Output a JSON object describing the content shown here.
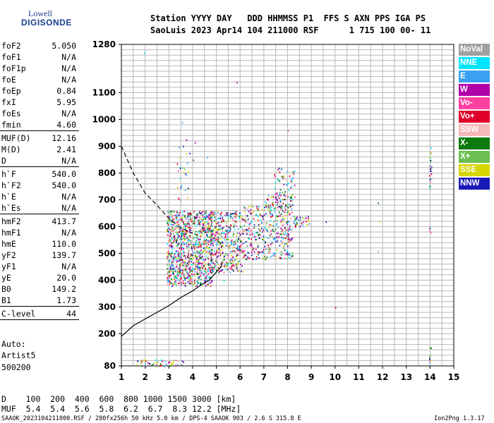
{
  "logo": {
    "line1": "Lowell",
    "line2": "DIGISONDE"
  },
  "header": {
    "line1": "Station YYYY DAY   DDD HHMMSS P1  FFS S AXN PPS IGA PS",
    "line2": "SaoLuis 2023 Apr14 104 211000 RSF      1 715 100 00- 11"
  },
  "params_groups": [
    [
      [
        "foF2",
        "5.050"
      ],
      [
        "foF1",
        "N/A"
      ],
      [
        "foF1p",
        "N/A"
      ],
      [
        "foE",
        "N/A"
      ],
      [
        "foEp",
        "0.84"
      ],
      [
        "fxI",
        "5.95"
      ],
      [
        "foEs",
        "N/A"
      ],
      [
        "fmin",
        "4.60"
      ]
    ],
    [
      [
        "MUF(D)",
        "12.16"
      ],
      [
        "M(D)",
        "2.41"
      ],
      [
        "D",
        "N/A"
      ]
    ],
    [
      [
        "h`F",
        "540.0"
      ],
      [
        "h`F2",
        "540.0"
      ],
      [
        "h`E",
        "N/A"
      ],
      [
        "h`Es",
        "N/A"
      ]
    ],
    [
      [
        "hmF2",
        "413.7"
      ],
      [
        "hmF1",
        "N/A"
      ],
      [
        "hmE",
        "110.0"
      ],
      [
        "yF2",
        "139.7"
      ],
      [
        "yF1",
        "N/A"
      ],
      [
        "yE",
        "20.0"
      ],
      [
        "B0",
        "149.2"
      ],
      [
        "B1",
        "1.73"
      ]
    ],
    [
      [
        "C-level",
        "44"
      ]
    ]
  ],
  "auto": {
    "l1": "Auto:",
    "l2": "Artist5",
    "l3": "500200"
  },
  "legend": [
    {
      "label": "NoVal",
      "color": "#a0a0a0"
    },
    {
      "label": "NNE",
      "color": "#00e5ff"
    },
    {
      "label": "E",
      "color": "#3aa0f0"
    },
    {
      "label": "W",
      "color": "#b000a8"
    },
    {
      "label": "Vo-",
      "color": "#ff40a0"
    },
    {
      "label": "Vo+",
      "color": "#e0002a"
    },
    {
      "label": "SSW",
      "color": "#f6b8b8"
    },
    {
      "label": "X-",
      "color": "#0a7a0a"
    },
    {
      "label": "X+",
      "color": "#6bbf50"
    },
    {
      "label": "SSE",
      "color": "#d6d600"
    },
    {
      "label": "NNW",
      "color": "#1a1ab8"
    }
  ],
  "footer": {
    "d_row": "D    100  200  400  600  800 1000 1500 3000 [km]",
    "muf_row": "MUF  5.4  5.4  5.6  5.8  6.2  6.7  8.3 12.2 [MHz]",
    "info": "SAAOK_2023104211000.RSF / 280fx256h 50 kHz 5.0 km / DPS-4 SAAOK 903 / 2.6 S 315.8 E",
    "version": "Ion2Png 1.3.17"
  },
  "chart_data": {
    "type": "scatter",
    "title": "",
    "xlabel": "",
    "ylabel": "",
    "xlim": [
      1,
      15
    ],
    "ylim": [
      80,
      1280
    ],
    "x_ticks": [
      "1",
      "2",
      "3",
      "4",
      "5",
      "6",
      "7",
      "8",
      "9",
      "10",
      "11",
      "12",
      "13",
      "14",
      "15"
    ],
    "y_ticks": [
      "80",
      "200",
      "300",
      "400",
      "500",
      "600",
      "700",
      "800",
      "900",
      "1000",
      "1100",
      "1280"
    ],
    "y_tick_values": [
      80,
      200,
      300,
      400,
      500,
      600,
      700,
      800,
      900,
      1000,
      1100,
      1280
    ],
    "echo_regions": [
      {
        "x": [
          2.9,
          4.8
        ],
        "y": [
          380,
          660
        ],
        "n": 1100
      },
      {
        "x": [
          4.7,
          6.1
        ],
        "y": [
          430,
          660
        ],
        "n": 450
      },
      {
        "x": [
          6.1,
          7.0
        ],
        "y": [
          480,
          680
        ],
        "n": 180
      },
      {
        "x": [
          7.0,
          8.2
        ],
        "y": [
          480,
          720
        ],
        "n": 320
      },
      {
        "x": [
          7.4,
          8.3
        ],
        "y": [
          700,
          820
        ],
        "n": 60
      },
      {
        "x": [
          8.2,
          9.0
        ],
        "y": [
          600,
          640
        ],
        "n": 40
      },
      {
        "x": [
          3.3,
          3.8
        ],
        "y": [
          700,
          840
        ],
        "n": 25
      },
      {
        "x": [
          3.4,
          4.1
        ],
        "y": [
          850,
          930
        ],
        "n": 8
      },
      {
        "x": [
          1.6,
          3.6
        ],
        "y": [
          80,
          105
        ],
        "n": 60
      },
      {
        "x": [
          13.95,
          14.05
        ],
        "y": [
          740,
          910
        ],
        "n": 30
      },
      {
        "x": [
          13.95,
          14.05
        ],
        "y": [
          580,
          620
        ],
        "n": 4
      },
      {
        "x": [
          13.95,
          14.05
        ],
        "y": [
          80,
          160
        ],
        "n": 10
      }
    ],
    "echo_points": [
      {
        "x": 1.95,
        "y": 1250
      },
      {
        "x": 3.55,
        "y": 990
      },
      {
        "x": 5.85,
        "y": 1140
      },
      {
        "x": 8.0,
        "y": 960
      },
      {
        "x": 10.0,
        "y": 300
      },
      {
        "x": 10.1,
        "y": 620
      },
      {
        "x": 11.8,
        "y": 690
      },
      {
        "x": 11.8,
        "y": 510
      },
      {
        "x": 11.85,
        "y": 620
      },
      {
        "x": 9.6,
        "y": 620
      },
      {
        "x": 5.3,
        "y": 400
      },
      {
        "x": 4.6,
        "y": 860
      }
    ],
    "trace_solid": [
      [
        1,
        190
      ],
      [
        1.5,
        230
      ],
      [
        2,
        255
      ],
      [
        2.5,
        280
      ],
      [
        3,
        305
      ],
      [
        3.5,
        335
      ],
      [
        4,
        360
      ],
      [
        4.4,
        385
      ],
      [
        4.7,
        400
      ],
      [
        5.0,
        430
      ],
      [
        5.2,
        450
      ],
      [
        5.25,
        470
      ]
    ],
    "trace_dashed": [
      [
        1,
        900
      ],
      [
        1.5,
        800
      ],
      [
        2,
        725
      ],
      [
        2.5,
        680
      ],
      [
        3,
        630
      ],
      [
        3.5,
        595
      ],
      [
        4,
        575
      ]
    ]
  }
}
